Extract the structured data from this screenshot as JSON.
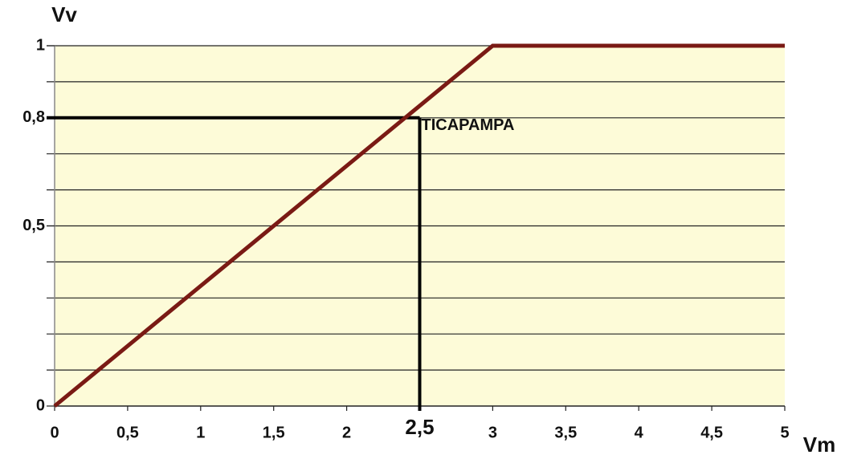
{
  "chart_data": {
    "type": "line",
    "y_label": "Vv",
    "x_label": "Vm",
    "x": [
      0,
      3,
      5
    ],
    "series": [
      {
        "color": "#7a1a14",
        "values": [
          0,
          1,
          1
        ]
      }
    ],
    "xlim": [
      0,
      5
    ],
    "ylim": [
      0,
      1
    ],
    "xticks": [
      0,
      {
        "value": 0.5,
        "label": "0,5"
      },
      1,
      {
        "value": 1.5,
        "label": "1,5"
      },
      2,
      3,
      {
        "value": 3.5,
        "label": "3,5"
      },
      4,
      {
        "value": 4.5,
        "label": "4,5"
      },
      5
    ],
    "yticks": [
      0,
      {
        "value": 0.5,
        "label": "0,5"
      },
      {
        "value": 0.8,
        "label": "0,8"
      },
      1
    ],
    "ygrid": [
      0.1,
      0.2,
      0.3,
      0.4,
      0.5,
      0.6,
      0.7,
      0.8,
      0.9,
      1
    ],
    "background": "#fdfbd8",
    "annotation": {
      "text": "TICAPAMPA",
      "x": 2.5,
      "y": 0.8,
      "x_label": "2,5"
    }
  }
}
